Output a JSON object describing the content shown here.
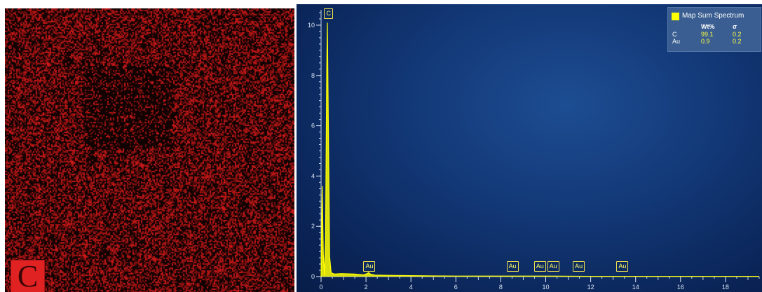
{
  "map": {
    "element_label": "C",
    "color": "#e02222"
  },
  "legend": {
    "title": "Map Sum Spectrum",
    "swatch_color": "#ffff00",
    "headers": [
      "Wt%",
      "σ"
    ],
    "rows": [
      {
        "element": "C",
        "wt": "99.1",
        "sigma": "0.2"
      },
      {
        "element": "Au",
        "wt": "0.9",
        "sigma": "0.2"
      }
    ]
  },
  "peak_tags": [
    {
      "label": "C",
      "energy": 0.28
    },
    {
      "label": "Au",
      "energy": 2.12
    },
    {
      "label": "Au",
      "energy": 8.49
    },
    {
      "label": "Au",
      "energy": 9.71
    },
    {
      "label": "Au",
      "energy": 10.3
    },
    {
      "label": "Au",
      "energy": 11.44
    },
    {
      "label": "Au",
      "energy": 13.38
    }
  ],
  "chart_data": {
    "type": "line",
    "series": [
      {
        "name": "Map Sum Spectrum",
        "color": "#ffff00",
        "x": [
          0.0,
          0.05,
          0.1,
          0.15,
          0.2,
          0.25,
          0.28,
          0.32,
          0.38,
          0.45,
          0.6,
          0.9,
          1.5,
          1.9,
          2.05,
          2.12,
          2.2,
          2.4,
          3.0,
          4.0,
          5.0,
          6.0,
          7.0,
          8.0,
          9.0,
          10.0,
          12.0,
          14.0,
          16.0,
          18.0,
          19.5
        ],
        "y": [
          0.0,
          3.6,
          0.9,
          0.05,
          1.5,
          8.0,
          10.1,
          6.5,
          0.8,
          0.15,
          0.1,
          0.12,
          0.1,
          0.07,
          0.12,
          0.16,
          0.1,
          0.06,
          0.05,
          0.04,
          0.03,
          0.02,
          0.02,
          0.02,
          0.02,
          0.02,
          0.01,
          0.01,
          0.01,
          0.01,
          0.01
        ]
      }
    ],
    "xlim": [
      0,
      19.5
    ],
    "ylim": [
      0,
      10.5
    ],
    "x_ticks": [
      0,
      2,
      4,
      6,
      8,
      10,
      12,
      14,
      16,
      18
    ],
    "y_ticks": [
      0,
      2,
      4,
      6,
      8,
      10
    ],
    "x_tick_labels": [
      "0",
      "2",
      "4",
      "6",
      "8",
      "10",
      "12",
      "14",
      "16",
      "18"
    ],
    "y_tick_labels": [
      "0",
      "2",
      "4",
      "6",
      "8",
      "10"
    ],
    "xlabel": "",
    "ylabel": "",
    "grid": false,
    "legend_position": "top-right"
  }
}
